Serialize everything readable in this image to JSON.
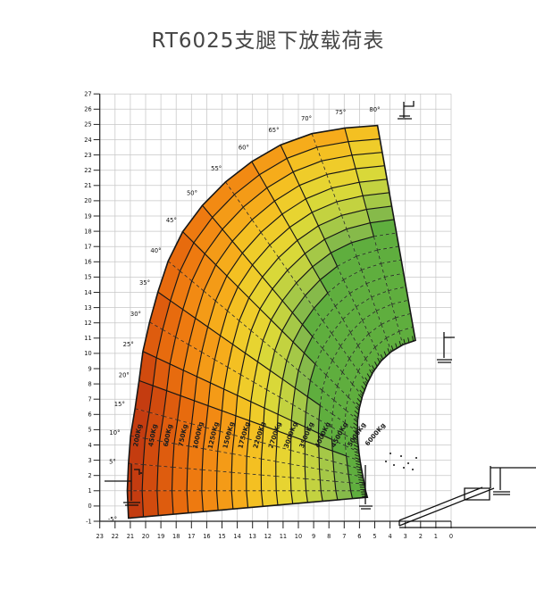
{
  "page": {
    "background": "#ffffff"
  },
  "chart_data": {
    "type": "heatmap",
    "subtype": "polar-load-capacity-fan",
    "title": "RT6025支腿下放载荷表",
    "x_axis": {
      "ticks": [
        23,
        22,
        21,
        20,
        19,
        18,
        17,
        16,
        15,
        14,
        13,
        12,
        11,
        10,
        9,
        8,
        7,
        6,
        5,
        4,
        3,
        2,
        1,
        0
      ],
      "direction": "right-to-left",
      "grid": true
    },
    "y_axis": {
      "ticks": [
        -1,
        0,
        1,
        2,
        3,
        4,
        5,
        6,
        7,
        8,
        9,
        10,
        11,
        12,
        13,
        14,
        15,
        16,
        17,
        18,
        19,
        20,
        21,
        22,
        23,
        24,
        25,
        26,
        27
      ],
      "grid": true
    },
    "grid_color": "#c7c7c7",
    "axis_color": "#222222",
    "boom_angles_deg": [
      -5,
      0,
      5,
      10,
      15,
      20,
      25,
      30,
      35,
      40,
      45,
      50,
      55,
      60,
      65,
      70,
      75,
      80
    ],
    "angle_labels": [
      "-5°",
      null,
      "5°",
      "10°",
      "15°",
      "20°",
      "25°",
      "30°",
      "35°",
      "40°",
      "45°",
      "50°",
      "55°",
      "60°",
      "65°",
      "70°",
      "75°",
      "80°"
    ],
    "pivot_m": {
      "x": 0.6,
      "y": 1.0
    },
    "outer_radius_m": [
      20.6,
      20.6,
      20.6,
      20.7,
      20.8,
      21.1,
      21.6,
      22.1,
      22.7,
      23.4,
      24.0,
      24.4,
      24.7,
      24.9,
      25.0,
      24.9,
      24.6,
      24.3
    ],
    "inner_radius_m": [
      4.9,
      5.0,
      5.1,
      5.25,
      5.45,
      5.7,
      6.0,
      6.35,
      6.75,
      7.2,
      7.65,
      8.1,
      8.55,
      9.0,
      9.4,
      9.7,
      9.9,
      10.0
    ],
    "bands": 16,
    "capacity_shift_per_sector": [
      0,
      0,
      0,
      0,
      0,
      1,
      2,
      2,
      3,
      3,
      4,
      5,
      5,
      6,
      7,
      7,
      8
    ],
    "load_zones": [
      {
        "label": "200Kg",
        "color": "#c43c10"
      },
      {
        "label": "450Kg",
        "color": "#d14b0e"
      },
      {
        "label": "600Kg",
        "color": "#de5c0e"
      },
      {
        "label": "750Kg",
        "color": "#e76b0e"
      },
      {
        "label": "1000Kg",
        "color": "#ee7a10"
      },
      {
        "label": "1250Kg",
        "color": "#f28a13"
      },
      {
        "label": "1500Kg",
        "color": "#f49b17"
      },
      {
        "label": "1750Kg",
        "color": "#f6ac1b"
      },
      {
        "label": "2200Kg",
        "color": "#f4c022"
      },
      {
        "label": "2700Kg",
        "color": "#efcc2a"
      },
      {
        "label": "3000Kg",
        "color": "#e7d431"
      },
      {
        "label": "3500Kg",
        "color": "#d9d839"
      },
      {
        "label": "4000Kg",
        "color": "#c3d240"
      },
      {
        "label": "4500Kg",
        "color": "#a5c847"
      },
      {
        "label": "5000Kg",
        "color": "#86ba4a"
      },
      {
        "label": "6000Kg",
        "color": "#5fae3e"
      }
    ],
    "line_colors": {
      "solid": "#161616",
      "dashed": "#2a2a2a"
    },
    "icons": [
      "outrigger-icon-top-right",
      "outrigger-pad-icon-right",
      "stabilizer-jack-icon-left",
      "stabilizer-jack-icon-mid",
      "machine-silhouette-icon",
      "debris-dots-decoration"
    ]
  }
}
